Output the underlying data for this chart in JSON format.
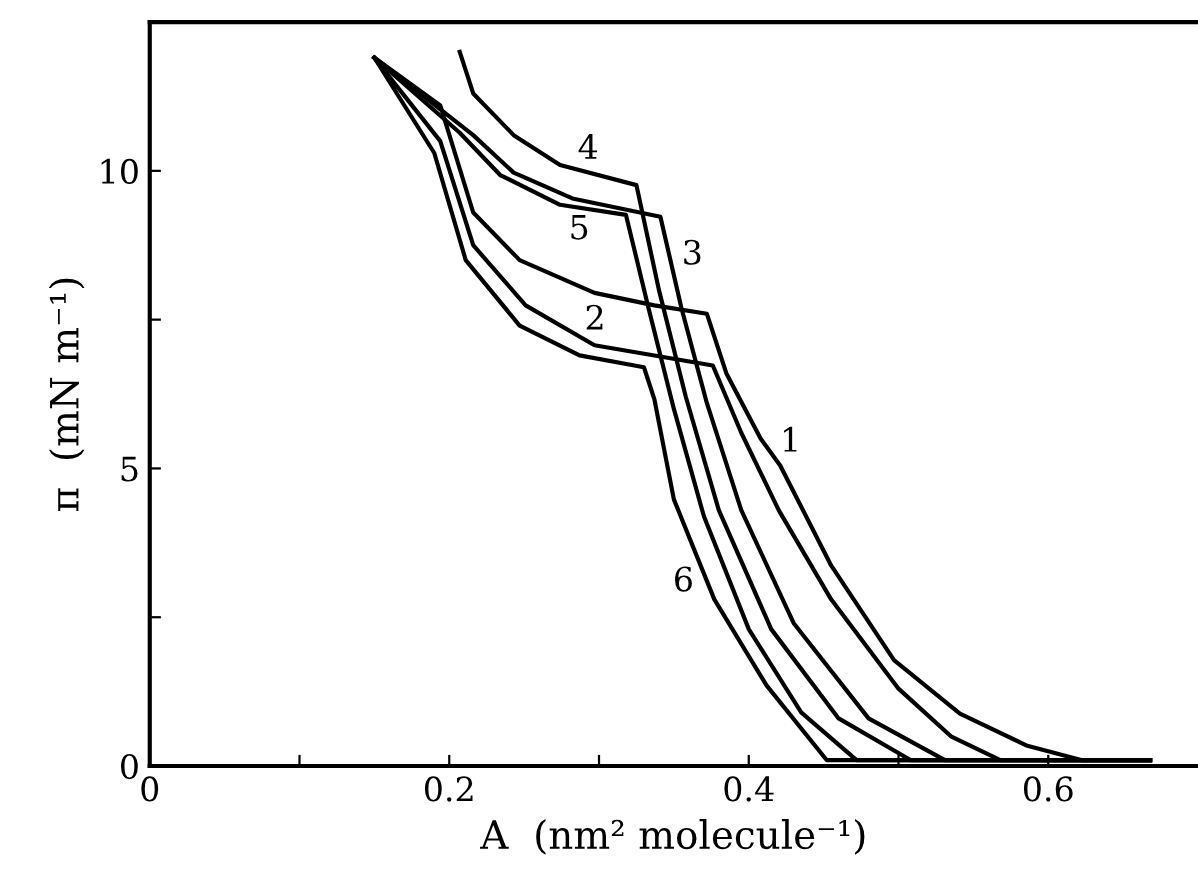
{
  "chart_data": {
    "type": "line",
    "xlabel": "A  (nm² molecule⁻¹)",
    "ylabel": "π  (mN m⁻¹)",
    "xlim": [
      0,
      0.7
    ],
    "ylim": [
      0,
      12.5
    ],
    "xticks": [
      0,
      {
        "value": 0.1,
        "label": null
      },
      {
        "value": 0.2,
        "label": "0.2"
      },
      {
        "value": 0.3,
        "label": null
      },
      {
        "value": 0.4,
        "label": "0.4"
      },
      {
        "value": 0.5,
        "label": null
      },
      {
        "value": 0.6,
        "label": "0.6"
      }
    ],
    "yticks": [
      0,
      {
        "value": 2.5,
        "label": null
      },
      5,
      {
        "value": 7.5,
        "label": null
      },
      10
    ],
    "grid": false,
    "legend": false,
    "marker": "none",
    "line_style": "solid",
    "series": [
      {
        "color": "#000000",
        "x": [
          0.15,
          0.194,
          0.216,
          0.247,
          0.297,
          0.337,
          0.372,
          0.385,
          0.408,
          0.421,
          0.455,
          0.497,
          0.541,
          0.586,
          0.622,
          0.668
        ],
        "values": [
          11.9,
          11.1,
          9.3,
          8.5,
          7.95,
          7.74,
          7.6,
          6.6,
          5.5,
          5.05,
          3.37,
          1.78,
          0.88,
          0.34,
          0.1,
          0.1
        ]
      },
      {
        "color": "#000000",
        "x": [
          0.15,
          0.194,
          0.216,
          0.251,
          0.297,
          0.376,
          0.395,
          0.42,
          0.455,
          0.5,
          0.535,
          0.568,
          0.668
        ],
        "values": [
          11.9,
          10.5,
          8.75,
          7.74,
          7.07,
          6.73,
          5.6,
          4.3,
          2.8,
          1.3,
          0.5,
          0.1,
          0.1
        ]
      },
      {
        "color": "#000000",
        "x": [
          0.15,
          0.216,
          0.243,
          0.283,
          0.341,
          0.355,
          0.372,
          0.395,
          0.43,
          0.48,
          0.531,
          0.668
        ],
        "values": [
          11.9,
          10.6,
          9.97,
          9.53,
          9.23,
          7.7,
          6.1,
          4.3,
          2.4,
          0.8,
          0.1,
          0.1
        ]
      },
      {
        "color": "#000000",
        "x": [
          0.207,
          0.216,
          0.243,
          0.274,
          0.325,
          0.34,
          0.358,
          0.38,
          0.415,
          0.46,
          0.508,
          0.668
        ],
        "values": [
          12.0,
          11.3,
          10.6,
          10.1,
          9.76,
          8.0,
          6.2,
          4.3,
          2.3,
          0.8,
          0.1,
          0.1
        ]
      },
      {
        "color": "#000000",
        "x": [
          0.15,
          0.207,
          0.234,
          0.274,
          0.318,
          0.333,
          0.35,
          0.37,
          0.4,
          0.435,
          0.472,
          0.668
        ],
        "values": [
          11.9,
          10.64,
          9.93,
          9.43,
          9.26,
          7.7,
          6.0,
          4.2,
          2.3,
          0.9,
          0.1,
          0.1
        ]
      },
      {
        "color": "#000000",
        "x": [
          0.15,
          0.19,
          0.211,
          0.247,
          0.287,
          0.33,
          0.337,
          0.35,
          0.377,
          0.412,
          0.452,
          0.668
        ],
        "values": [
          11.9,
          10.3,
          8.5,
          7.4,
          6.9,
          6.7,
          6.16,
          4.48,
          2.8,
          1.35,
          0.1,
          0.1
        ]
      }
    ],
    "annotations": [
      {
        "text": "1",
        "x": 0.416,
        "y": 5.22
      },
      {
        "text": "2",
        "x": 0.29,
        "y": 7.17
      },
      {
        "text": "3",
        "x": 0.348,
        "y": 8.5
      },
      {
        "text": "4",
        "x": 0.289,
        "y": 10.0
      },
      {
        "text": "5",
        "x": 0.289,
        "y": 9.37
      },
      {
        "text": "6",
        "x": 0.37,
        "y": 3.23
      }
    ]
  }
}
